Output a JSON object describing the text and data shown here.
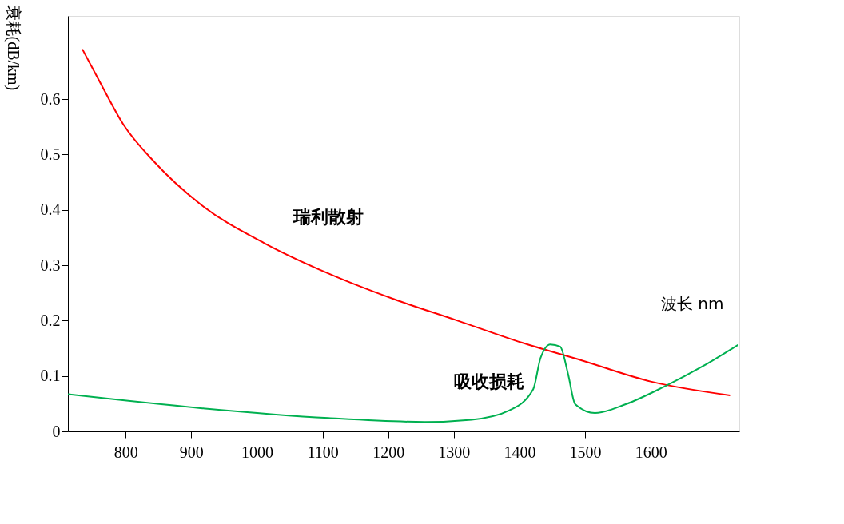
{
  "chart_data": {
    "type": "line",
    "xlabel": "波长 nm",
    "ylabel": "衰耗(dB/km)",
    "xlim": [
      712,
      1735
    ],
    "xticks": [
      800,
      900,
      1000,
      1100,
      1200,
      1300,
      1400,
      1500,
      1600
    ],
    "ylim": [
      0,
      0.75
    ],
    "yticks": [
      0,
      0.1,
      0.2,
      0.3,
      0.4,
      0.5,
      0.6
    ],
    "grid": false,
    "marker": "none",
    "line_style": "solid",
    "series": [
      {
        "name": "瑞利散射",
        "color": "#ff0000",
        "x": [
          734,
          761,
          796,
          844,
          914,
          1011,
          1109,
          1208,
          1303,
          1404,
          1495,
          1600,
          1721
        ],
        "values": [
          0.69,
          0.63,
          0.555,
          0.486,
          0.41,
          0.34,
          0.285,
          0.239,
          0.201,
          0.16,
          0.128,
          0.09,
          0.065
        ]
      },
      {
        "name": "吸收损耗",
        "color": "#00b050",
        "x": [
          712,
          914,
          1109,
          1256,
          1327,
          1385,
          1421,
          1432,
          1447,
          1462,
          1474,
          1485,
          1515,
          1562,
          1621,
          1680,
          1733
        ],
        "values": [
          0.067,
          0.042,
          0.024,
          0.017,
          0.021,
          0.038,
          0.076,
          0.132,
          0.157,
          0.153,
          0.104,
          0.049,
          0.033,
          0.049,
          0.081,
          0.118,
          0.156
        ]
      }
    ]
  }
}
